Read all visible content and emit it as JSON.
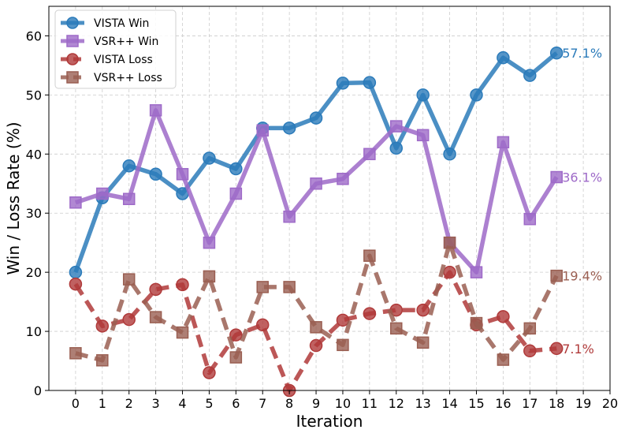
{
  "chart_data": {
    "type": "line",
    "title": "",
    "xlabel": "Iteration",
    "ylabel": "Win / Loss Rate (%)",
    "xlim": [
      -1,
      20
    ],
    "ylim": [
      0,
      65
    ],
    "xticks": [
      "0",
      "1",
      "2",
      "3",
      "4",
      "5",
      "6",
      "7",
      "8",
      "9",
      "10",
      "11",
      "12",
      "13",
      "14",
      "15",
      "16",
      "17",
      "18",
      "19",
      "20"
    ],
    "yticks": [
      "0",
      "10",
      "20",
      "30",
      "40",
      "50",
      "60"
    ],
    "grid": true,
    "legend_position": "top-left",
    "x": [
      0,
      1,
      2,
      3,
      4,
      5,
      6,
      7,
      8,
      9,
      10,
      11,
      12,
      13,
      14,
      15,
      16,
      17,
      18
    ],
    "series": [
      {
        "name": "VISTA Win",
        "color": "#2b7bba",
        "marker": "circle",
        "linestyle": "solid",
        "values": [
          20.0,
          32.6,
          38.0,
          36.6,
          33.3,
          39.3,
          37.5,
          44.4,
          44.4,
          46.1,
          52.0,
          52.1,
          41.0,
          50.0,
          40.0,
          50.0,
          56.3,
          53.3,
          57.1
        ],
        "end_label": "57.1%"
      },
      {
        "name": "VSR++ Win",
        "color": "#9e6ac8",
        "marker": "square",
        "linestyle": "solid",
        "values": [
          31.8,
          33.3,
          32.4,
          47.4,
          36.6,
          25.0,
          33.3,
          44.0,
          29.4,
          35.0,
          35.8,
          40.0,
          44.7,
          43.2,
          25.0,
          20.0,
          42.0,
          29.0,
          36.1
        ],
        "end_label": "36.1%"
      },
      {
        "name": "VISTA Loss",
        "color": "#b03a3a",
        "marker": "circle",
        "linestyle": "dashed",
        "values": [
          18.0,
          10.9,
          12.0,
          17.1,
          17.9,
          3.0,
          9.4,
          11.1,
          0.0,
          7.6,
          11.9,
          13.0,
          13.6,
          13.6,
          20.0,
          11.1,
          12.5,
          6.7,
          7.1
        ],
        "end_label": "7.1%"
      },
      {
        "name": "VSR++ Loss",
        "color": "#9a5f52",
        "marker": "square",
        "linestyle": "dashed",
        "values": [
          6.3,
          5.1,
          18.8,
          12.4,
          9.8,
          19.3,
          5.6,
          17.5,
          17.5,
          10.7,
          7.7,
          22.8,
          10.5,
          8.1,
          25.0,
          11.4,
          5.2,
          10.5,
          19.4
        ],
        "end_label": "19.4%"
      }
    ]
  }
}
